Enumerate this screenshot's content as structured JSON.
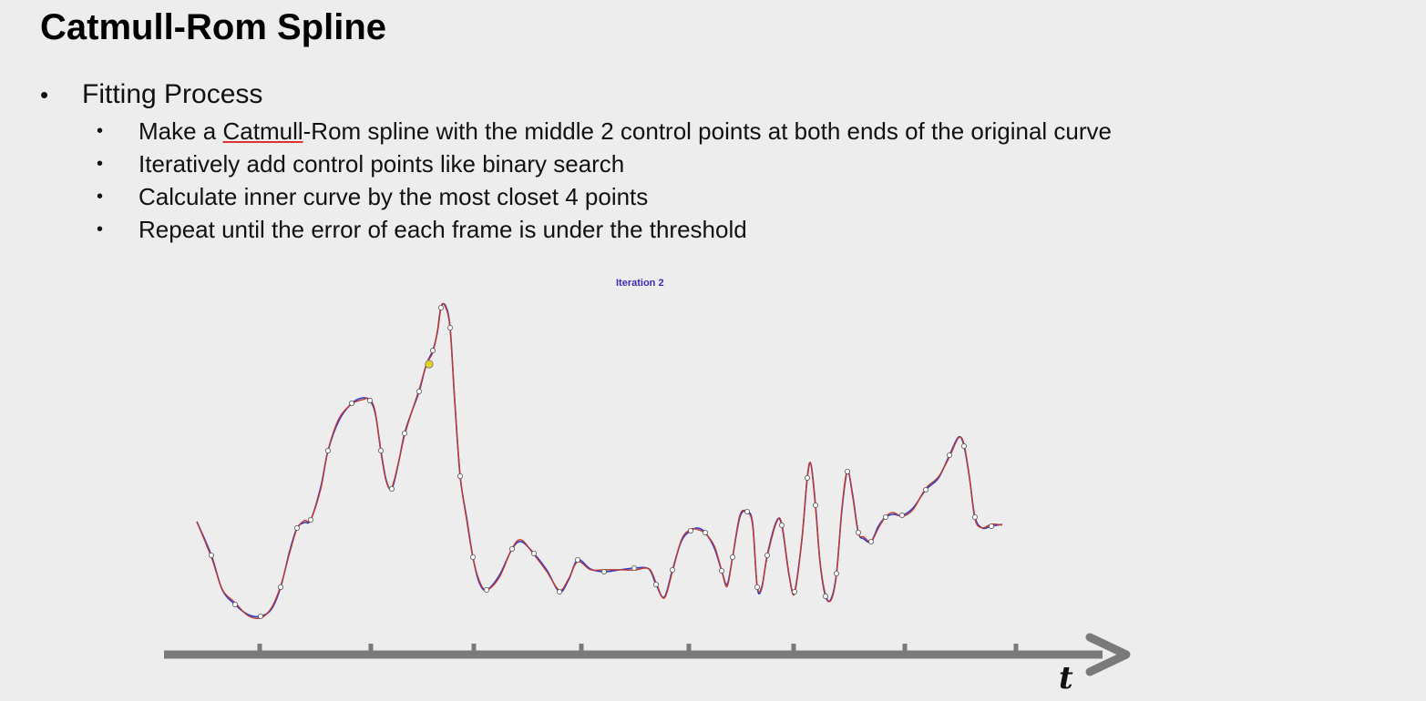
{
  "slide": {
    "title": "Catmull-Rom Spline",
    "bullet": "Fitting Process",
    "subbullets": [
      {
        "prefix": "Make a ",
        "underlined": "Catmull",
        "suffix": "-Rom spline with the middle 2 control points at both ends of the original curve"
      },
      {
        "text": "Iteratively add control points like binary search"
      },
      {
        "text": "Calculate inner curve by the most closet 4 points"
      },
      {
        "text": "Repeat until the error of each frame is under the threshold"
      }
    ]
  },
  "figure": {
    "iteration_label": "Iteration 2",
    "axis_label": "t",
    "colors": {
      "original_curve": "#2a3fd6",
      "fitted_curve": "#c0392b",
      "control_point_fill": "#ffffff",
      "highlight_point": "#e6d21a",
      "axis": "#7a7a7a"
    }
  }
}
